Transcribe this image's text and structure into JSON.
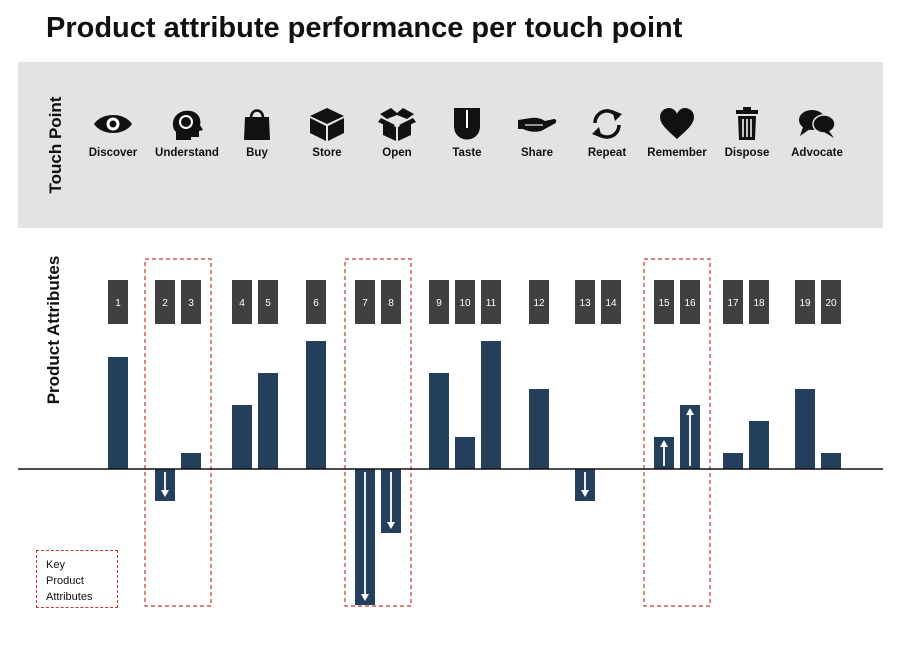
{
  "title": "Product attribute performance per touch point",
  "touch_point_axis_label": "Touch Point",
  "product_attributes_axis_label": "Product Attributes",
  "key_label": "Key\nProduct\nAttributes",
  "touch_points": [
    {
      "name": "Discover",
      "icon": "eye-icon"
    },
    {
      "name": "Understand",
      "icon": "head-icon"
    },
    {
      "name": "Buy",
      "icon": "shopping-bag-icon"
    },
    {
      "name": "Store",
      "icon": "box-icon"
    },
    {
      "name": "Open",
      "icon": "open-box-icon"
    },
    {
      "name": "Taste",
      "icon": "tongue-icon"
    },
    {
      "name": "Share",
      "icon": "open-hand-icon"
    },
    {
      "name": "Repeat",
      "icon": "repeat-icon"
    },
    {
      "name": "Remember",
      "icon": "heart-icon"
    },
    {
      "name": "Dispose",
      "icon": "trash-icon"
    },
    {
      "name": "Advocate",
      "icon": "speech-bubbles-icon"
    }
  ],
  "colors": {
    "bar": "#243f5c",
    "label_box": "#404040",
    "key_border": "#c0392b",
    "band": "#e3e3e3"
  },
  "chart_data": {
    "type": "bar",
    "categories": [
      "1",
      "2",
      "3",
      "4",
      "5",
      "6",
      "7",
      "8",
      "9",
      "10",
      "11",
      "12",
      "13",
      "14",
      "15",
      "16",
      "17",
      "18",
      "19",
      "20"
    ],
    "groups": [
      [
        "1"
      ],
      [
        "2",
        "3"
      ],
      [
        "4",
        "5"
      ],
      [
        "6"
      ],
      [
        "7",
        "8"
      ],
      [
        "9",
        "10",
        "11"
      ],
      [
        "12"
      ],
      [
        "13",
        "14"
      ],
      [
        "15",
        "16"
      ],
      [
        "17",
        "18"
      ],
      [
        "19",
        "20"
      ]
    ],
    "values": [
      7,
      -2,
      1,
      4,
      6,
      8,
      -8.5,
      -4,
      6,
      2,
      8,
      5,
      -2,
      0,
      2,
      4,
      1,
      3,
      5,
      1
    ],
    "arrows": {
      "2": "down",
      "7": "down",
      "8": "down",
      "13": "down",
      "15": "up",
      "16": "up"
    },
    "key_attributes": [
      "2",
      "3",
      "7",
      "8",
      "15",
      "16"
    ],
    "ylim": [
      -8.5,
      8
    ]
  }
}
